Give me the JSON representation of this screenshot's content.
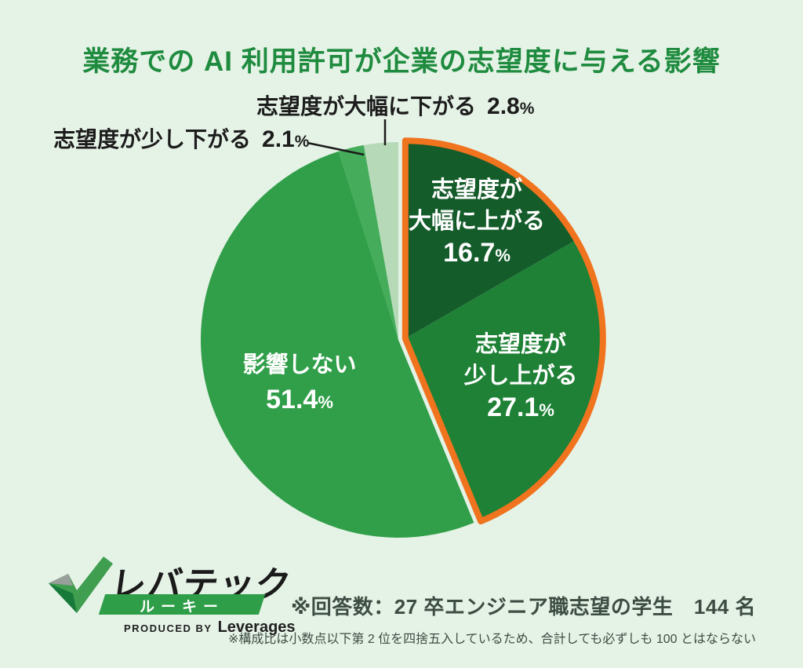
{
  "page": {
    "background": "#e5f2e6"
  },
  "title": {
    "text": "業務での AI 利用許可が企業の志望度に与える影響",
    "color": "#1e8b3e"
  },
  "chart_data": {
    "type": "pie",
    "title": "業務での AI 利用許可が企業の志望度に与える影響",
    "percent_sign": "%",
    "start_angle_deg": 0,
    "direction": "clockwise",
    "legend_position": "none",
    "highlight_stroke": "#f0731e",
    "slices": [
      {
        "label": "志望度が大幅に上がる",
        "value": 16.7,
        "color": "#155c2b",
        "highlighted": true,
        "label_lines": [
          "志望度が",
          "大幅に上がる"
        ]
      },
      {
        "label": "志望度が少し上がる",
        "value": 27.1,
        "color": "#1e8136",
        "highlighted": true,
        "label_lines": [
          "志望度が",
          "少し上がる"
        ]
      },
      {
        "label": "影響しない",
        "value": 51.4,
        "color": "#319f49",
        "highlighted": false,
        "label_lines": [
          "影響しない"
        ]
      },
      {
        "label": "志望度が少し下がる",
        "value": 2.1,
        "color": "#44ac5a",
        "highlighted": false,
        "callout": true
      },
      {
        "label": "志望度が大幅に下がる",
        "value": 2.8,
        "color": "#b6dab8",
        "highlighted": false,
        "callout": true
      }
    ]
  },
  "footnotes": {
    "line1": "※回答数：27 卒エンジニア職志望の学生　144 名",
    "line2": "※構成比は小数点以下第 2 位を四捨五入しているため、合計しても必ずしも 100 とはならない",
    "color": "#3d4d43"
  },
  "logo": {
    "brand": "レバテック",
    "sub_brand": "ルーキー",
    "produced_by": "PRODUCED BY",
    "company": "Leverages",
    "band_color": "#2f9e48",
    "check_green": "#3f9e4f",
    "check_gray": "#999f9a",
    "check_dark": "#17793a"
  }
}
